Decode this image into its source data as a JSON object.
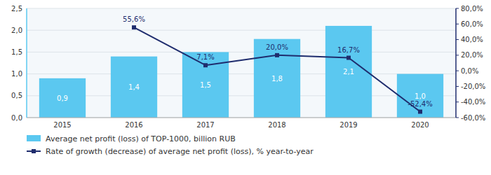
{
  "chart_data": {
    "type": "bar",
    "categories": [
      "2015",
      "2016",
      "2017",
      "2018",
      "2019",
      "2020"
    ],
    "series": [
      {
        "name": "Average net profit (loss) of TOP-1000, billion RUB",
        "type": "bar",
        "color": "#5BC8F0",
        "values": [
          0.9,
          1.4,
          1.5,
          1.8,
          2.1,
          1.0
        ],
        "value_labels": [
          "0,9",
          "1,4",
          "1,5",
          "1,8",
          "2,1",
          "1,0"
        ]
      },
      {
        "name": "Rate of growth (decrease) of average net profit (loss), % year-to-year",
        "type": "line",
        "axis": "y2",
        "color": "#1F2D6E",
        "marker": "square",
        "values": [
          null,
          55.6,
          7.1,
          20.0,
          16.7,
          -52.4
        ],
        "value_labels": [
          null,
          "55,6%",
          "7,1%",
          "20,0%",
          "16,7%",
          "-52,4%"
        ]
      }
    ],
    "ylim": [
      0,
      2.5
    ],
    "yticks": [
      {
        "value": 0.0,
        "label": "0,0"
      },
      {
        "value": 0.5,
        "label": "0,5"
      },
      {
        "value": 1.0,
        "label": "1,0"
      },
      {
        "value": 1.5,
        "label": "1,5"
      },
      {
        "value": 2.0,
        "label": "2,0"
      },
      {
        "value": 2.5,
        "label": "2,5"
      }
    ],
    "y2lim": [
      -60,
      80
    ],
    "y2ticks": [
      {
        "value": -60,
        "label": "-60,0%"
      },
      {
        "value": -40,
        "label": "-40,0%"
      },
      {
        "value": -20,
        "label": "-20,0%"
      },
      {
        "value": 0,
        "label": "0,0%"
      },
      {
        "value": 20,
        "label": "20,0%"
      },
      {
        "value": 40,
        "label": "40,0%"
      },
      {
        "value": 60,
        "label": "60,0%"
      },
      {
        "value": 80,
        "label": "80,0%"
      }
    ],
    "grid": true,
    "legend": "lower left",
    "data_labels": true
  }
}
